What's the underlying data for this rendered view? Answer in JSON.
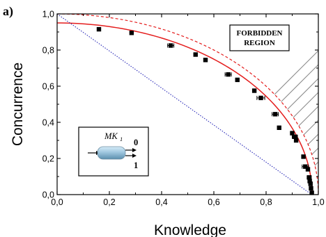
{
  "panel_label": "a)",
  "forbidden_label_line1": "FORBIDDEN",
  "forbidden_label_line2": "REGION",
  "inset": {
    "device": "MK",
    "subscript": "1",
    "out_top": "0",
    "out_bottom": "1"
  },
  "colors": {
    "data": "#000000",
    "theory": "#e41c1c",
    "bound": "#e41c1c",
    "linear": "#2a2ab8",
    "hatch": "#8a8a8a",
    "device_fill": "#9fc7df"
  },
  "chart_data": {
    "type": "scatter",
    "xlabel": "Knowledge",
    "ylabel": "Concurrence",
    "xlim": [
      0,
      1
    ],
    "ylim": [
      0,
      1
    ],
    "x_ticks": [
      "0,0",
      "0,2",
      "0,4",
      "0,6",
      "0,8",
      "1,0"
    ],
    "y_ticks": [
      "0,0",
      "0,2",
      "0,4",
      "0,6",
      "0,8",
      "1,0"
    ],
    "grid": false,
    "legend": "none",
    "series": [
      {
        "type": "scatter",
        "points": [
          {
            "x": 0.16,
            "y": 0.915
          },
          {
            "x": 0.285,
            "y": 0.895
          },
          {
            "x": 0.435,
            "y": 0.825,
            "xerr": 0.012
          },
          {
            "x": 0.53,
            "y": 0.775
          },
          {
            "x": 0.568,
            "y": 0.745
          },
          {
            "x": 0.655,
            "y": 0.665,
            "xerr": 0.012
          },
          {
            "x": 0.69,
            "y": 0.635
          },
          {
            "x": 0.755,
            "y": 0.575
          },
          {
            "x": 0.78,
            "y": 0.535,
            "xerr": 0.015
          },
          {
            "x": 0.835,
            "y": 0.445,
            "xerr": 0.012
          },
          {
            "x": 0.85,
            "y": 0.37
          },
          {
            "x": 0.9,
            "y": 0.34
          },
          {
            "x": 0.91,
            "y": 0.32,
            "xerr": 0.01
          },
          {
            "x": 0.915,
            "y": 0.3
          },
          {
            "x": 0.943,
            "y": 0.21
          },
          {
            "x": 0.95,
            "y": 0.155,
            "xerr": 0.012
          },
          {
            "x": 0.96,
            "y": 0.14
          },
          {
            "x": 0.965,
            "y": 0.095,
            "xerr": 0.008
          },
          {
            "x": 0.967,
            "y": 0.075
          },
          {
            "x": 0.97,
            "y": 0.06
          },
          {
            "x": 0.972,
            "y": 0.035
          },
          {
            "x": 0.975,
            "y": 0.01
          }
        ]
      },
      {
        "type": "line",
        "style": "solid",
        "y0": 0.95,
        "x_end": 0.976
      },
      {
        "type": "line",
        "style": "dashed",
        "y0": 1.0,
        "x_end": 1.0
      },
      {
        "type": "line",
        "style": "dotted",
        "from": [
          0,
          1
        ],
        "to": [
          0.975,
          0
        ]
      }
    ]
  }
}
